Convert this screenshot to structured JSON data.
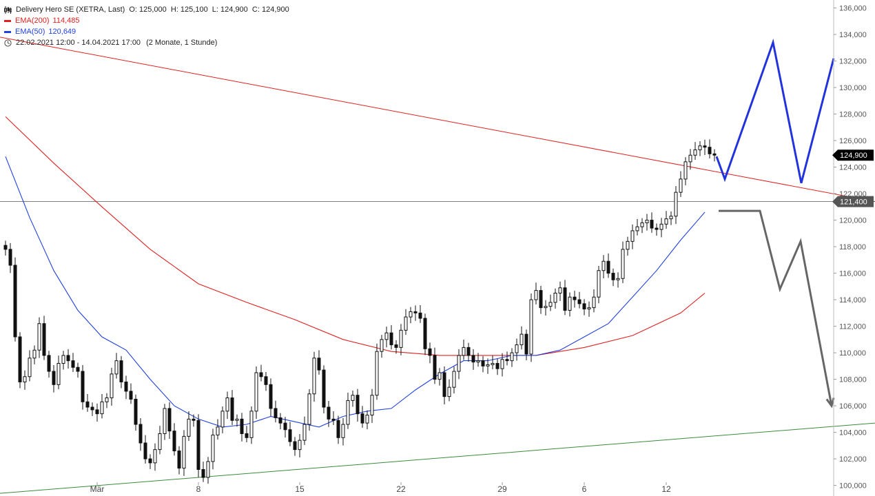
{
  "legend": {
    "title": "Delivery Hero SE (XETRA, Last)",
    "ohlc": "O: 125,000  H: 125,100  L: 124,900  C: 124,900",
    "ema200_label": "EMA(200)",
    "ema200_value": "114,485",
    "ema50_label": "EMA(50)",
    "ema50_value": "120,649",
    "range": "22.02.2021 12:00 - 14.04.2021 17:00",
    "range_note": "(2 Monate, 1 Stunde)"
  },
  "colors": {
    "ema200": "#e02020",
    "ema50": "#2040e0",
    "candle": "#111111",
    "resistance": "#e02020",
    "support": "#3a8a3a",
    "level": "#555555",
    "bull_scenario": "#2233dd",
    "bear_scenario": "#666666"
  },
  "chart_data": {
    "type": "candlestick",
    "title": "Delivery Hero SE (XETRA, Last)",
    "xlabel": "",
    "ylabel": "",
    "ylim": [
      99.2,
      136.6
    ],
    "y_ticks": [
      100,
      102,
      104,
      106,
      108,
      110,
      112,
      114,
      116,
      118,
      120,
      122,
      124,
      126,
      128,
      130,
      132,
      134,
      136
    ],
    "y_tick_labels": [
      "100,000",
      "102,000",
      "104,000",
      "106,000",
      "108,000",
      "110,000",
      "112,000",
      "114,000",
      "116,000",
      "118,000",
      "120,000",
      "122,000",
      "124,000",
      "126,000",
      "128,000",
      "130,000",
      "132,000",
      "134,000",
      "136,000"
    ],
    "x_tick_labels": [
      "Mär",
      "8",
      "15",
      "22",
      "29",
      "6",
      "12"
    ],
    "x_tick_index": [
      19,
      40,
      61,
      82,
      103,
      120,
      137
    ],
    "last_price_label": "124,900",
    "last_price": 124.9,
    "level_label": "121,400",
    "level": 121.4,
    "close": [
      117.8,
      116.6,
      111.2,
      107.8,
      108.2,
      109.6,
      110.2,
      112.2,
      109.8,
      108.6,
      107.6,
      109.2,
      109.8,
      109.4,
      108.9,
      108.6,
      106.3,
      105.9,
      105.7,
      105.4,
      106.3,
      106.6,
      108.4,
      109.4,
      107.8,
      107.1,
      106.5,
      104.6,
      103.2,
      102.0,
      101.7,
      102.7,
      103.9,
      105.8,
      104.1,
      102.6,
      101.3,
      103.7,
      105.0,
      104.9,
      101.2,
      100.6,
      101.8,
      103.8,
      104.4,
      105.6,
      106.6,
      104.9,
      105.0,
      103.9,
      103.6,
      105.6,
      108.5,
      108.2,
      107.6,
      105.8,
      105.1,
      104.7,
      104.2,
      103.3,
      102.7,
      103.4,
      104.6,
      106.9,
      109.6,
      108.7,
      105.9,
      105.0,
      104.9,
      103.6,
      104.6,
      106.4,
      106.8,
      105.4,
      104.7,
      105.3,
      106.8,
      110.1,
      111.0,
      111.5,
      110.6,
      110.4,
      111.7,
      112.7,
      113.1,
      113.0,
      112.6,
      110.3,
      109.8,
      108.0,
      108.5,
      106.7,
      107.4,
      108.6,
      109.8,
      110.4,
      109.8,
      109.3,
      109.4,
      109.0,
      109.1,
      109.2,
      108.8,
      109.5,
      109.4,
      110.0,
      110.6,
      111.4,
      109.9,
      114.0,
      114.7,
      113.4,
      113.5,
      113.8,
      114.5,
      114.9,
      113.2,
      114.2,
      114.0,
      113.7,
      113.3,
      113.4,
      114.2,
      116.2,
      116.9,
      116.0,
      115.5,
      115.6,
      117.8,
      118.4,
      119.2,
      119.5,
      119.8,
      120.0,
      119.4,
      119.3,
      119.7,
      120.1,
      120.3,
      122.1,
      123.1,
      124.4,
      124.9,
      125.3,
      125.6,
      125.5,
      125.0,
      124.9
    ],
    "series": [
      {
        "name": "EMA(200)",
        "value": "114,485",
        "x": [
          0,
          10,
          20,
          30,
          40,
          50,
          60,
          70,
          80,
          90,
          100,
          110,
          120,
          130,
          140,
          145
        ],
        "y": [
          127.8,
          124.3,
          121.0,
          117.8,
          115.2,
          113.8,
          112.5,
          111.0,
          110.1,
          109.8,
          109.8,
          109.8,
          110.4,
          111.3,
          113.0,
          114.5
        ]
      },
      {
        "name": "EMA(50)",
        "value": "120,649",
        "x": [
          0,
          5,
          10,
          15,
          20,
          25,
          30,
          35,
          40,
          45,
          50,
          55,
          60,
          65,
          70,
          75,
          80,
          85,
          90,
          95,
          100,
          105,
          110,
          115,
          120,
          125,
          130,
          135,
          140,
          145
        ],
        "y": [
          124.8,
          120.2,
          116.2,
          113.2,
          111.2,
          110.2,
          108.0,
          106.0,
          105.0,
          104.4,
          104.6,
          105.2,
          104.8,
          104.4,
          105.2,
          105.6,
          105.8,
          107.2,
          108.4,
          109.4,
          109.4,
          109.8,
          109.8,
          110.2,
          111.2,
          112.2,
          114.2,
          116.2,
          118.5,
          120.6
        ]
      }
    ],
    "trendlines": [
      {
        "name": "resistance",
        "x": [
          0,
          1270
        ],
        "y": [
          133.8,
          121.4
        ]
      },
      {
        "name": "support",
        "x": [
          0,
          1270
        ],
        "y": [
          99.4,
          104.7
        ]
      },
      {
        "name": "horizontal",
        "x": [
          0,
          1270
        ],
        "y": [
          121.4,
          121.4
        ]
      }
    ],
    "scenarios": [
      {
        "name": "bullish",
        "x": [
          1040,
          1052,
          1122,
          1163,
          1210
        ],
        "y": [
          124.8,
          123.1,
          133.4,
          122.8,
          132.2
        ]
      },
      {
        "name": "bearish",
        "x": [
          1043,
          1103,
          1132,
          1162,
          1207
        ],
        "y": [
          120.7,
          120.7,
          114.8,
          118.4,
          106.0
        ]
      }
    ]
  }
}
